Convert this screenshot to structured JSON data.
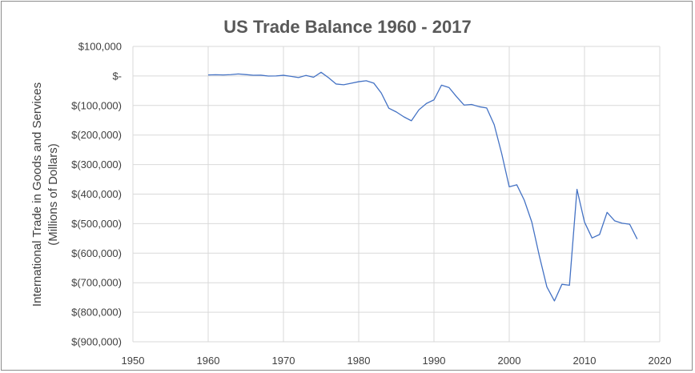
{
  "chart_data": {
    "type": "line",
    "title": "US Trade Balance 1960 - 2017",
    "ylabel_line1": "International Trade in Goods and Services",
    "ylabel_line2": "(Millions of Dollars)",
    "xlabel": "",
    "xlim": [
      1950,
      2020
    ],
    "ylim": [
      -900000,
      100000
    ],
    "x_ticks": [
      1950,
      1960,
      1970,
      1980,
      1990,
      2000,
      2010,
      2020
    ],
    "x_tick_labels": [
      "1950",
      "1960",
      "1970",
      "1980",
      "1990",
      "2000",
      "2010",
      "2020"
    ],
    "y_ticks": [
      100000,
      0,
      -100000,
      -200000,
      -300000,
      -400000,
      -500000,
      -600000,
      -700000,
      -800000,
      -900000
    ],
    "y_tick_labels": [
      "$100,000",
      "$-",
      "$(100,000)",
      "$(200,000)",
      "$(300,000)",
      "$(400,000)",
      "$(500,000)",
      "$(600,000)",
      "$(700,000)",
      "$(800,000)",
      "$(900,000)"
    ],
    "grid": true,
    "legend": "none",
    "series": [
      {
        "color": "#4472c4",
        "x": [
          1960,
          1961,
          1962,
          1963,
          1964,
          1965,
          1966,
          1967,
          1968,
          1969,
          1970,
          1971,
          1972,
          1973,
          1974,
          1975,
          1976,
          1977,
          1978,
          1979,
          1980,
          1981,
          1982,
          1983,
          1984,
          1985,
          1986,
          1987,
          1988,
          1989,
          1990,
          1991,
          1992,
          1993,
          1994,
          1995,
          1996,
          1997,
          1998,
          1999,
          2000,
          2001,
          2002,
          2003,
          2004,
          2005,
          2006,
          2007,
          2008,
          2009,
          2010,
          2011,
          2012,
          2013,
          2014,
          2015,
          2016,
          2017
        ],
        "values": [
          3500,
          4200,
          3400,
          4400,
          6800,
          4700,
          2400,
          2600,
          -200,
          100,
          2300,
          -1300,
          -5400,
          1900,
          -4300,
          12400,
          -6100,
          -27200,
          -29800,
          -24600,
          -19400,
          -16200,
          -24200,
          -57800,
          -109100,
          -121900,
          -138500,
          -151700,
          -114600,
          -93100,
          -80900,
          -31100,
          -39200,
          -70300,
          -98500,
          -96400,
          -104100,
          -108300,
          -164900,
          -263200,
          -375300,
          -368400,
          -420700,
          -494800,
          -609400,
          -714200,
          -761700,
          -705400,
          -708700,
          -383800,
          -494700,
          -548600,
          -536800,
          -461900,
          -490300,
          -498500,
          -502000,
          -552300
        ]
      }
    ]
  }
}
